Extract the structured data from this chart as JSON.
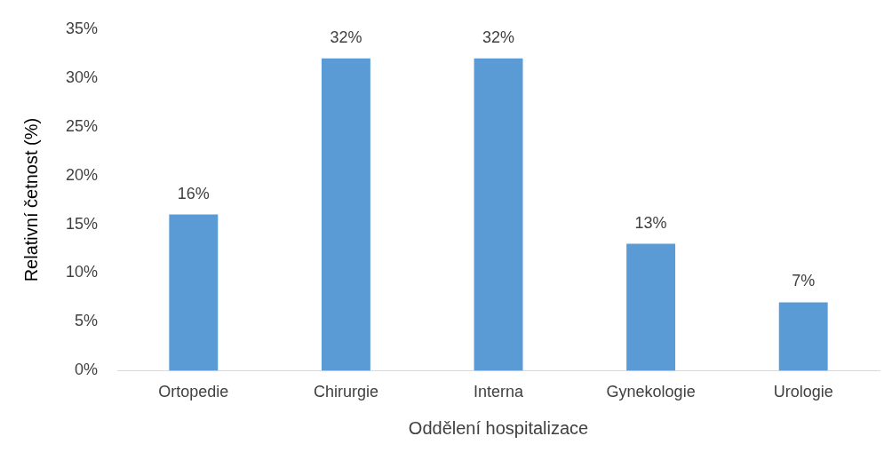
{
  "chart_data": {
    "type": "bar",
    "xlabel": "Oddělení hospitalizace",
    "ylabel": "Relativní četnost (%)",
    "categories": [
      "Ortopedie",
      "Chirurgie",
      "Interna",
      "Gynekologie",
      "Urologie"
    ],
    "values": [
      16,
      32,
      32,
      13,
      7
    ],
    "color": "#5b9bd5",
    "value_labels": [
      "16%",
      "32%",
      "32%",
      "13%",
      "7%"
    ],
    "ylim": [
      0,
      35
    ],
    "yticks": [
      {
        "value": 0,
        "label": "0%"
      },
      {
        "value": 5,
        "label": "5%"
      },
      {
        "value": 10,
        "label": "10%"
      },
      {
        "value": 15,
        "label": "15%"
      },
      {
        "value": 20,
        "label": "20%"
      },
      {
        "value": 25,
        "label": "25%"
      },
      {
        "value": 30,
        "label": "30%"
      },
      {
        "value": 35,
        "label": "35%"
      }
    ],
    "grid": false,
    "legend": false
  }
}
